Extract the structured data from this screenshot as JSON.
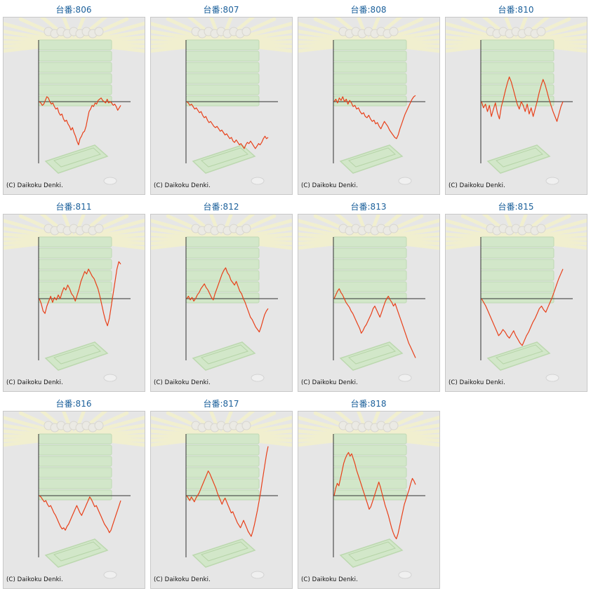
{
  "page": {
    "copyright": "(C) Daikoku Denki."
  },
  "colors": {
    "line": "#e8401a",
    "axis": "#333333",
    "background": "#e6e6e6",
    "title": "#1a5f9a",
    "watermark_green": "#cfe8c4",
    "watermark_rays": "#f3f1cc"
  },
  "watermark_icon": "pachinko-machine-watermark",
  "chart_data": [
    {
      "type": "line",
      "title": "台番:806",
      "values": [
        0,
        -1,
        -3,
        -2,
        1,
        4,
        3,
        0,
        -2,
        -1,
        -4,
        -6,
        -5,
        -9,
        -11,
        -10,
        -14,
        -16,
        -15,
        -18,
        -20,
        -23,
        -21,
        -25,
        -28,
        -32,
        -35,
        -30,
        -28,
        -25,
        -24,
        -20,
        -14,
        -8,
        -6,
        -3,
        -4,
        -1,
        -2,
        1,
        2,
        3,
        1,
        0,
        -1,
        2,
        -1,
        0,
        -1,
        -3,
        -2,
        -4,
        -7,
        -5,
        -3
      ]
    },
    {
      "type": "line",
      "title": "台番:807",
      "values": [
        0,
        -1,
        -3,
        -2,
        -4,
        -6,
        -5,
        -7,
        -9,
        -8,
        -11,
        -13,
        -12,
        -15,
        -17,
        -16,
        -18,
        -20,
        -21,
        -20,
        -22,
        -24,
        -23,
        -25,
        -27,
        -26,
        -28,
        -30,
        -29,
        -32,
        -33,
        -31,
        -33,
        -35,
        -34,
        -36,
        -38,
        -35,
        -33,
        -34,
        -32,
        -34,
        -36,
        -38,
        -36,
        -34,
        -35,
        -33,
        -30,
        -28,
        -30,
        -29
      ]
    },
    {
      "type": "line",
      "title": "台番:808",
      "values": [
        0,
        2,
        -1,
        3,
        1,
        4,
        0,
        2,
        -2,
        1,
        -1,
        -4,
        -3,
        -6,
        -5,
        -8,
        -10,
        -9,
        -12,
        -13,
        -11,
        -14,
        -16,
        -15,
        -18,
        -17,
        -20,
        -22,
        -19,
        -16,
        -18,
        -20,
        -23,
        -25,
        -27,
        -29,
        -30,
        -27,
        -22,
        -18,
        -14,
        -10,
        -7,
        -4,
        -1,
        2,
        4,
        5
      ]
    },
    {
      "type": "line",
      "title": "台番:810",
      "values": [
        0,
        -5,
        -2,
        -8,
        -3,
        -12,
        -6,
        -1,
        -9,
        -14,
        -4,
        2,
        9,
        15,
        20,
        16,
        10,
        4,
        -2,
        -6,
        0,
        -3,
        -8,
        -2,
        -10,
        -5,
        -12,
        -6,
        0,
        7,
        13,
        18,
        14,
        8,
        2,
        -3,
        -8,
        -12,
        -16,
        -10,
        -4,
        0
      ]
    },
    {
      "type": "line",
      "title": "台番:811",
      "values": [
        0,
        -4,
        -10,
        -12,
        -6,
        -2,
        2,
        -3,
        1,
        -1,
        3,
        0,
        5,
        9,
        7,
        11,
        8,
        4,
        2,
        -2,
        3,
        8,
        14,
        18,
        22,
        20,
        24,
        21,
        18,
        16,
        12,
        8,
        2,
        -5,
        -12,
        -18,
        -22,
        -16,
        -6,
        4,
        14,
        24,
        30,
        28
      ]
    },
    {
      "type": "line",
      "title": "台番:812",
      "values": [
        0,
        2,
        -1,
        1,
        -2,
        0,
        3,
        5,
        8,
        10,
        12,
        9,
        7,
        4,
        1,
        -1,
        4,
        8,
        12,
        16,
        20,
        23,
        25,
        21,
        19,
        15,
        13,
        11,
        14,
        10,
        6,
        4,
        0,
        -3,
        -7,
        -11,
        -15,
        -17,
        -20,
        -23,
        -25,
        -27,
        -23,
        -18,
        -13,
        -10,
        -8
      ]
    },
    {
      "type": "line",
      "title": "台番:813",
      "values": [
        0,
        3,
        6,
        8,
        5,
        3,
        0,
        -3,
        -5,
        -7,
        -10,
        -12,
        -15,
        -18,
        -21,
        -24,
        -28,
        -26,
        -23,
        -21,
        -18,
        -15,
        -12,
        -8,
        -6,
        -9,
        -12,
        -15,
        -11,
        -7,
        -3,
        0,
        2,
        -1,
        -3,
        -6,
        -4,
        -8,
        -12,
        -16,
        -20,
        -24,
        -28,
        -32,
        -36,
        -39,
        -42,
        -45,
        -48
      ]
    },
    {
      "type": "line",
      "title": "台番:815",
      "values": [
        0,
        -3,
        -6,
        -10,
        -14,
        -18,
        -22,
        -26,
        -30,
        -28,
        -25,
        -27,
        -30,
        -32,
        -29,
        -26,
        -30,
        -33,
        -36,
        -38,
        -34,
        -30,
        -27,
        -23,
        -19,
        -16,
        -12,
        -8,
        -6,
        -9,
        -11,
        -7,
        -3,
        1,
        6,
        11,
        16,
        20,
        24
      ]
    },
    {
      "type": "line",
      "title": "台番:816",
      "values": [
        0,
        -1,
        -3,
        -5,
        -4,
        -7,
        -9,
        -8,
        -11,
        -14,
        -16,
        -19,
        -22,
        -25,
        -27,
        -26,
        -28,
        -25,
        -23,
        -20,
        -17,
        -14,
        -11,
        -8,
        -11,
        -14,
        -16,
        -13,
        -10,
        -7,
        -4,
        -1,
        -3,
        -6,
        -9,
        -8,
        -11,
        -14,
        -17,
        -20,
        -23,
        -25,
        -27,
        -30,
        -28,
        -24,
        -20,
        -16,
        -12,
        -8,
        -4
      ]
    },
    {
      "type": "line",
      "title": "台番:817",
      "values": [
        0,
        -2,
        -4,
        -1,
        -3,
        -5,
        -2,
        0,
        2,
        5,
        8,
        11,
        14,
        17,
        20,
        18,
        15,
        12,
        9,
        6,
        2,
        -1,
        -4,
        -7,
        -4,
        -2,
        -5,
        -8,
        -11,
        -14,
        -13,
        -16,
        -19,
        -22,
        -24,
        -26,
        -23,
        -20,
        -23,
        -26,
        -29,
        -31,
        -33,
        -29,
        -24,
        -18,
        -12,
        -5,
        2,
        10,
        18,
        26,
        34,
        40
      ]
    },
    {
      "type": "line",
      "title": "台番:818",
      "values": [
        0,
        6,
        10,
        8,
        14,
        20,
        26,
        30,
        33,
        35,
        32,
        34,
        30,
        26,
        21,
        17,
        13,
        9,
        5,
        1,
        -3,
        -7,
        -11,
        -9,
        -5,
        -1,
        3,
        7,
        11,
        7,
        2,
        -3,
        -8,
        -12,
        -16,
        -21,
        -26,
        -30,
        -33,
        -35,
        -31,
        -25,
        -19,
        -13,
        -7,
        -3,
        1,
        5,
        10,
        14,
        12,
        9
      ]
    }
  ]
}
